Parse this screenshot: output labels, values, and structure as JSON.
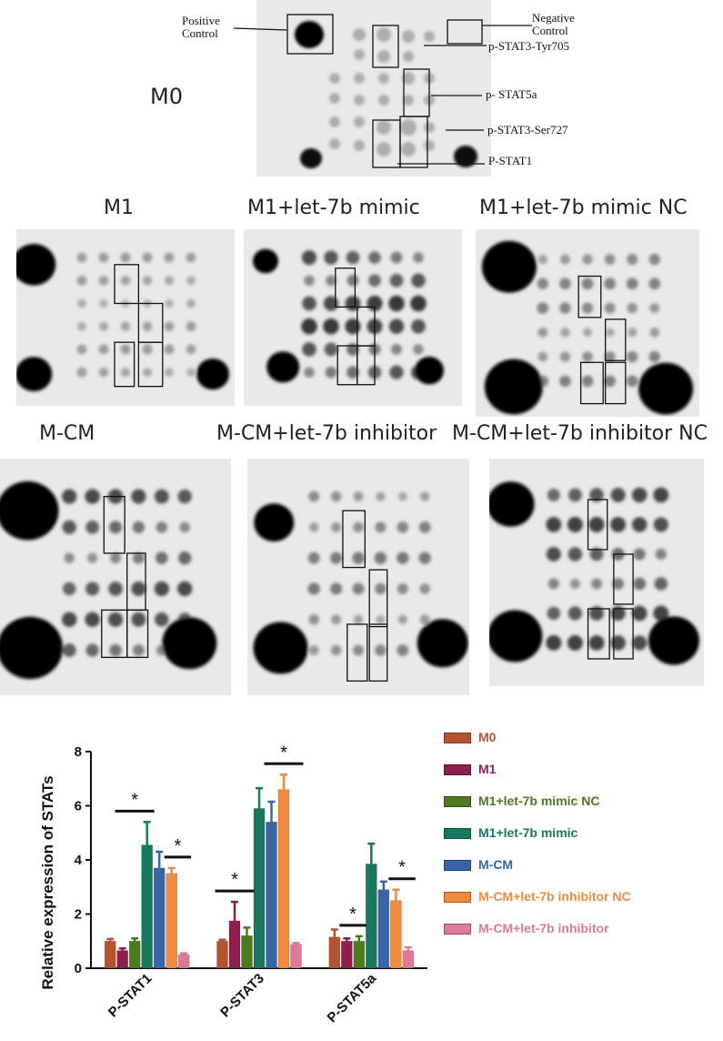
{
  "m0_panel": {
    "label": "M0",
    "annotations": {
      "positive_control": [
        "Positive",
        "Control"
      ],
      "negative_control": [
        "Negative",
        "Control"
      ],
      "p_stat3_tyr705": "p-STAT3-Tyr705",
      "p_stat5a": "p- STAT5a",
      "p_stat3_ser727": "p-STAT3-Ser727",
      "p_stat1": "P-STAT1"
    }
  },
  "panels": [
    {
      "title": "M1"
    },
    {
      "title": "M1+let-7b mimic"
    },
    {
      "title": "M1+let-7b mimic NC"
    },
    {
      "title": "M-CM"
    },
    {
      "title": "M-CM+let-7b inhibitor"
    },
    {
      "title": "M-CM+let-7b inhibitor NC"
    }
  ],
  "chart_data": {
    "type": "bar",
    "ylabel": "Relative expression of STATs",
    "ylim": [
      0,
      8
    ],
    "yticks": [
      "0",
      "2",
      "4",
      "6",
      "8"
    ],
    "categories": [
      "P-STAT1",
      "P-STAT3",
      "P-STAT5a"
    ],
    "series": [
      {
        "name": "M0",
        "color": "#b5532f",
        "values": [
          1.0,
          1.0,
          1.15
        ],
        "errors": [
          0.08,
          0.05,
          0.28
        ]
      },
      {
        "name": "M1",
        "color": "#8e1f4c",
        "values": [
          0.65,
          1.75,
          1.0
        ],
        "errors": [
          0.08,
          0.7,
          0.1
        ]
      },
      {
        "name": "M1+let-7b mimic NC",
        "color": "#4c7a1f",
        "values": [
          1.0,
          1.2,
          1.0
        ],
        "errors": [
          0.1,
          0.3,
          0.18
        ]
      },
      {
        "name": "M1+let-7b mimic",
        "color": "#17785d",
        "values": [
          4.55,
          5.9,
          3.85
        ],
        "errors": [
          0.85,
          0.75,
          0.75
        ]
      },
      {
        "name": "M-CM",
        "color": "#3a64a8",
        "values": [
          3.7,
          5.4,
          2.9
        ],
        "errors": [
          0.6,
          0.75,
          0.3
        ]
      },
      {
        "name": "M-CM+let-7b inhibitor NC",
        "color": "#f08a3c",
        "values": [
          3.5,
          6.6,
          2.5
        ],
        "errors": [
          0.2,
          0.55,
          0.4
        ]
      },
      {
        "name": "M-CM+let-7b inhibitor",
        "color": "#de7a98",
        "values": [
          0.5,
          0.88,
          0.65
        ],
        "errors": [
          0.05,
          0.05,
          0.12
        ]
      }
    ],
    "significance": [
      {
        "category": "P-STAT1",
        "from": "M1",
        "to": "M1+let-7b mimic",
        "label": "*"
      },
      {
        "category": "P-STAT1",
        "from": "M-CM+let-7b inhibitor NC",
        "to": "M-CM+let-7b inhibitor",
        "label": "*"
      },
      {
        "category": "P-STAT3",
        "from": "M0",
        "to": "M1+let-7b mimic NC",
        "label": "*"
      },
      {
        "category": "P-STAT3",
        "from": "M-CM",
        "to": "M-CM+let-7b inhibitor",
        "label": "*"
      },
      {
        "category": "P-STAT5a",
        "from": "M1",
        "to": "M1+let-7b mimic NC",
        "label": "*"
      },
      {
        "category": "P-STAT5a",
        "from": "M-CM+let-7b inhibitor NC",
        "to": "M-CM+let-7b inhibitor",
        "label": "*"
      }
    ],
    "legend_position": "right"
  }
}
